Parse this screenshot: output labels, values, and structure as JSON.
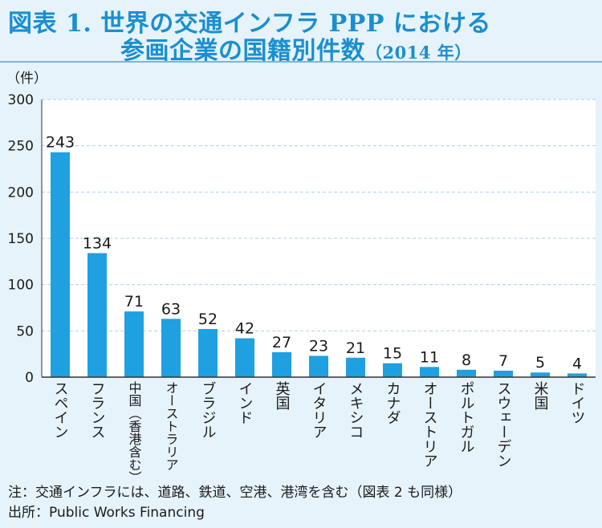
{
  "title": {
    "line1": "図表 1. 世界の交通インフラ PPP における",
    "line2": "参画企業の国籍別件数",
    "year": "（2014 年）"
  },
  "colors": {
    "bar": "#1ea0e1",
    "title": "#1a8fd0",
    "background": "#e6f3fb",
    "plot_background": "#ffffff",
    "grid": "#a9d2ec"
  },
  "chart_data": {
    "type": "bar",
    "ylabel": "（件）",
    "ylim": [
      0,
      300
    ],
    "yticks": [
      0,
      50,
      100,
      150,
      200,
      250,
      300
    ],
    "grid": true,
    "categories": [
      "スペイン",
      "フランス",
      "中国（香港含む）",
      "オーストラリア",
      "ブラジル",
      "インド",
      "英国",
      "イタリア",
      "メキシコ",
      "カナダ",
      "オーストリア",
      "ポルトガル",
      "スウェーデン",
      "米国",
      "ドイツ"
    ],
    "values": [
      243,
      134,
      71,
      63,
      52,
      42,
      27,
      23,
      21,
      15,
      11,
      8,
      7,
      5,
      4
    ]
  },
  "notes": {
    "note": "注：交通インフラには、道路、鉄道、空港、港湾を含む（図表 2 も同様）",
    "source": "出所：Public Works Financing"
  }
}
